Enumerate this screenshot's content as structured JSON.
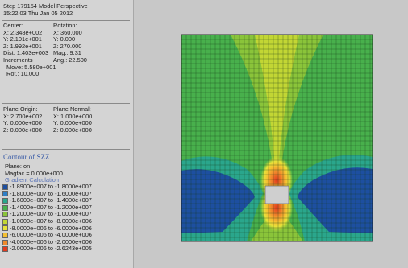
{
  "header": {
    "step_line": "Step 179154  Model Perspective",
    "time_line": "15:22:03 Thu Jan 05 2012"
  },
  "view_info": {
    "center_label": "Center:",
    "rotation_label": "Rotation:",
    "rows": [
      [
        "X: 2.348e+002",
        "X: 360.000"
      ],
      [
        "Y: 2.101e+001",
        "Y:   0.000"
      ],
      [
        "Z: 1.992e+001",
        "Z: 270.000"
      ],
      [
        "Dist: 1.403e+003",
        "Mag.:    9.31"
      ],
      [
        "Increments",
        "Ang.:  22.500"
      ]
    ],
    "move": "Move: 5.580e+001",
    "rot": "Rot.:  10.000"
  },
  "plane_info": {
    "origin_label": "Plane Origin:",
    "normal_label": "Plane Normal:",
    "rows": [
      [
        "X: 2.700e+002",
        "X: 1.000e+000"
      ],
      [
        "Y: 0.000e+000",
        "Y: 0.000e+000"
      ],
      [
        "Z: 0.000e+000",
        "Z: 0.000e+000"
      ]
    ]
  },
  "contour": {
    "title": "Contour of SZZ",
    "plane": "Plane: on",
    "magfac": "Magfac =  0.000e+000",
    "calc": "Gradient Calculation",
    "legend": [
      {
        "label": "-1.8900e+007 to -1.8000e+007",
        "color": "#1d4fa0"
      },
      {
        "label": "-1.8000e+007 to -1.6000e+007",
        "color": "#2e7fc8"
      },
      {
        "label": "-1.6000e+007 to -1.4000e+007",
        "color": "#2aa68c"
      },
      {
        "label": "-1.4000e+007 to -1.2000e+007",
        "color": "#48b04c"
      },
      {
        "label": "-1.2000e+007 to -1.0000e+007",
        "color": "#8ac43a"
      },
      {
        "label": "-1.0000e+007 to -8.0000e+006",
        "color": "#c2d634"
      },
      {
        "label": "-8.0000e+006 to -6.0000e+006",
        "color": "#e6e23a"
      },
      {
        "label": "-6.0000e+006 to -4.0000e+006",
        "color": "#f5c032"
      },
      {
        "label": "-4.0000e+006 to -2.0000e+006",
        "color": "#f08a2c"
      },
      {
        "label": "-2.0000e+006 to -2.6243e+005",
        "color": "#e23a1e"
      }
    ]
  }
}
